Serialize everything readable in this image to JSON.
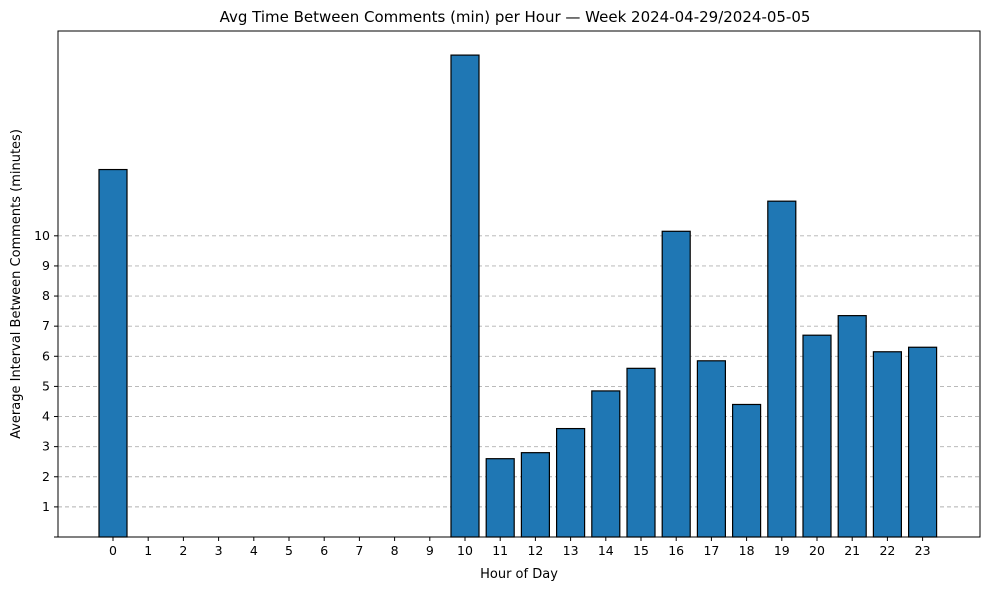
{
  "chart_data": {
    "type": "bar",
    "title": "Avg Time Between Comments (min) per Hour — Week 2024-04-29/2024-05-05",
    "xlabel": "Hour of Day",
    "ylabel": "Average Interval Between Comments (minutes)",
    "categories": [
      "0",
      "1",
      "2",
      "3",
      "4",
      "5",
      "6",
      "7",
      "8",
      "9",
      "10",
      "11",
      "12",
      "13",
      "14",
      "15",
      "16",
      "17",
      "18",
      "19",
      "20",
      "21",
      "22",
      "23"
    ],
    "values": [
      12.2,
      0,
      0,
      0,
      0,
      0,
      0,
      0,
      0,
      0,
      16.0,
      2.6,
      2.8,
      3.6,
      4.85,
      5.6,
      10.15,
      5.85,
      4.4,
      11.15,
      6.7,
      7.35,
      6.15,
      6.3
    ],
    "yticks": [
      1,
      2,
      3,
      4,
      5,
      6,
      7,
      8,
      9,
      10
    ],
    "ylim": [
      0,
      16.8
    ],
    "grid": "y-dashed",
    "bar_color": "#1f77b4",
    "edge_color": "#000000"
  }
}
